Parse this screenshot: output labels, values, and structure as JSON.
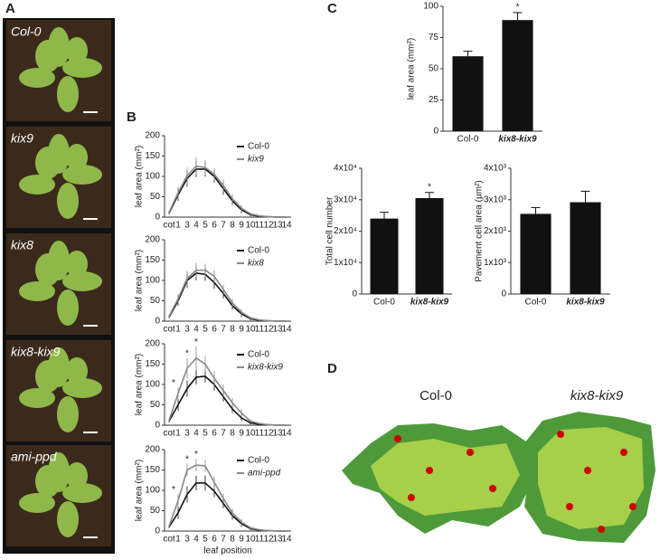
{
  "figure": {
    "panel_labels": [
      "A",
      "B",
      "C",
      "D"
    ],
    "photo_labels": [
      "Col-0",
      "kix9",
      "kix8",
      "kix8-kix9",
      "ami-ppd"
    ],
    "diagram_labels": [
      "Col-0",
      "kix8-kix9"
    ]
  },
  "chart_data": [
    {
      "type": "line",
      "ylabel": "leaf area (mm²)",
      "categories": [
        "cot",
        "1",
        "3",
        "4",
        "5",
        "6",
        "7",
        "8",
        "9",
        "10",
        "11",
        "12",
        "13",
        "14"
      ],
      "ylim": [
        0,
        200
      ],
      "yticks": [
        0,
        50,
        100,
        150,
        200
      ],
      "series": [
        {
          "name": "Col-0",
          "color": "#111111",
          "values": [
            10,
            55,
            95,
            118,
            118,
            100,
            70,
            40,
            18,
            6,
            2,
            1,
            0,
            0
          ],
          "errors": [
            3,
            15,
            20,
            20,
            18,
            15,
            15,
            10,
            8,
            4,
            2,
            1,
            0,
            0
          ]
        },
        {
          "name": "kix9",
          "color": "#888888",
          "values": [
            12,
            60,
            102,
            125,
            122,
            105,
            78,
            45,
            22,
            8,
            3,
            1,
            0,
            0
          ],
          "errors": [
            3,
            15,
            20,
            22,
            18,
            15,
            15,
            10,
            8,
            4,
            2,
            1,
            0,
            0
          ]
        }
      ]
    },
    {
      "type": "line",
      "ylabel": "leaf area (mm²)",
      "categories": [
        "cot",
        "1",
        "3",
        "4",
        "5",
        "6",
        "7",
        "8",
        "9",
        "10",
        "11",
        "12",
        "13",
        "14"
      ],
      "ylim": [
        0,
        200
      ],
      "yticks": [
        0,
        50,
        100,
        150,
        200
      ],
      "series": [
        {
          "name": "Col-0",
          "color": "#111111",
          "values": [
            10,
            50,
            100,
            118,
            115,
            95,
            68,
            38,
            18,
            6,
            2,
            1,
            0,
            0
          ],
          "errors": [
            3,
            12,
            18,
            18,
            16,
            15,
            12,
            10,
            8,
            4,
            2,
            1,
            0,
            0
          ]
        },
        {
          "name": "kix8",
          "color": "#888888",
          "values": [
            12,
            55,
            105,
            125,
            125,
            110,
            78,
            45,
            22,
            8,
            3,
            1,
            0,
            0
          ],
          "errors": [
            3,
            12,
            18,
            18,
            16,
            15,
            12,
            10,
            8,
            4,
            2,
            1,
            0,
            0
          ]
        }
      ]
    },
    {
      "type": "line",
      "ylabel": "leaf area (mm²)",
      "categories": [
        "cot",
        "1",
        "3",
        "4",
        "5",
        "6",
        "7",
        "8",
        "9",
        "10",
        "11",
        "12",
        "13",
        "14"
      ],
      "ylim": [
        0,
        200
      ],
      "yticks": [
        0,
        50,
        100,
        150,
        200
      ],
      "annotations": [
        "*",
        "*",
        "*"
      ],
      "series": [
        {
          "name": "Col-0",
          "color": "#111111",
          "values": [
            10,
            50,
            90,
            118,
            120,
            100,
            70,
            40,
            18,
            6,
            2,
            1,
            0,
            0
          ],
          "errors": [
            3,
            15,
            20,
            18,
            15,
            15,
            12,
            10,
            8,
            4,
            2,
            1,
            0,
            0
          ]
        },
        {
          "name": "kix8-kix9",
          "color": "#888888",
          "values": [
            12,
            78,
            140,
            165,
            150,
            115,
            85,
            55,
            30,
            10,
            4,
            1,
            0,
            0
          ],
          "errors": [
            3,
            15,
            25,
            28,
            20,
            18,
            15,
            12,
            10,
            4,
            2,
            1,
            0,
            0
          ]
        }
      ]
    },
    {
      "type": "line",
      "ylabel": "leaf area (mm²)",
      "xlabel": "leaf position",
      "categories": [
        "cot",
        "1",
        "3",
        "4",
        "5",
        "6",
        "7",
        "8",
        "9",
        "10",
        "11",
        "12",
        "13",
        "14"
      ],
      "ylim": [
        0,
        200
      ],
      "yticks": [
        0,
        50,
        100,
        150,
        200
      ],
      "annotations": [
        "*",
        "*",
        "*"
      ],
      "series": [
        {
          "name": "Col-0",
          "color": "#111111",
          "values": [
            10,
            45,
            90,
            118,
            118,
            98,
            68,
            38,
            18,
            6,
            2,
            1,
            0,
            0
          ],
          "errors": [
            3,
            15,
            20,
            18,
            18,
            15,
            12,
            10,
            8,
            4,
            2,
            1,
            0,
            0
          ]
        },
        {
          "name": "ami-ppd",
          "color": "#888888",
          "values": [
            12,
            75,
            150,
            162,
            160,
            120,
            80,
            45,
            22,
            8,
            3,
            1,
            0,
            0
          ],
          "errors": [
            3,
            15,
            15,
            15,
            15,
            15,
            12,
            10,
            8,
            4,
            2,
            1,
            0,
            0
          ]
        }
      ]
    },
    {
      "type": "bar",
      "ylabel": "leaf area (mm²)",
      "categories": [
        "Col-0",
        "kix8-kix9"
      ],
      "values": [
        60,
        89
      ],
      "errors": [
        4,
        6
      ],
      "annotations": [
        "*"
      ],
      "color": "#111111",
      "ylim": [
        0,
        100
      ],
      "yticks": [
        0,
        25,
        50,
        75,
        100
      ]
    },
    {
      "type": "bar",
      "ylabel": "Total cell number",
      "categories": [
        "Col-0",
        "kix8-kix9"
      ],
      "values": [
        24000,
        30500
      ],
      "errors": [
        2000,
        1800
      ],
      "annotations": [
        "*"
      ],
      "color": "#111111",
      "ylim": [
        0,
        40000
      ],
      "yticks": [
        0,
        {
          "value": 10000,
          "label": "1x10⁴"
        },
        {
          "value": 20000,
          "label": "2x10⁴"
        },
        {
          "value": 30000,
          "label": "3x10⁴"
        },
        {
          "value": 40000,
          "label": "4x10⁴"
        }
      ]
    },
    {
      "type": "bar",
      "ylabel": "Pavement cell area (µm²)",
      "categories": [
        "Col-0",
        "kix8-kix9"
      ],
      "values": [
        2550,
        2920
      ],
      "errors": [
        200,
        350
      ],
      "color": "#111111",
      "ylim": [
        0,
        4000
      ],
      "yticks": [
        0,
        {
          "value": 1000,
          "label": "1x10³"
        },
        {
          "value": 2000,
          "label": "2x10³"
        },
        {
          "value": 3000,
          "label": "3x10³"
        },
        {
          "value": 4000,
          "label": "4x10³"
        }
      ]
    }
  ]
}
